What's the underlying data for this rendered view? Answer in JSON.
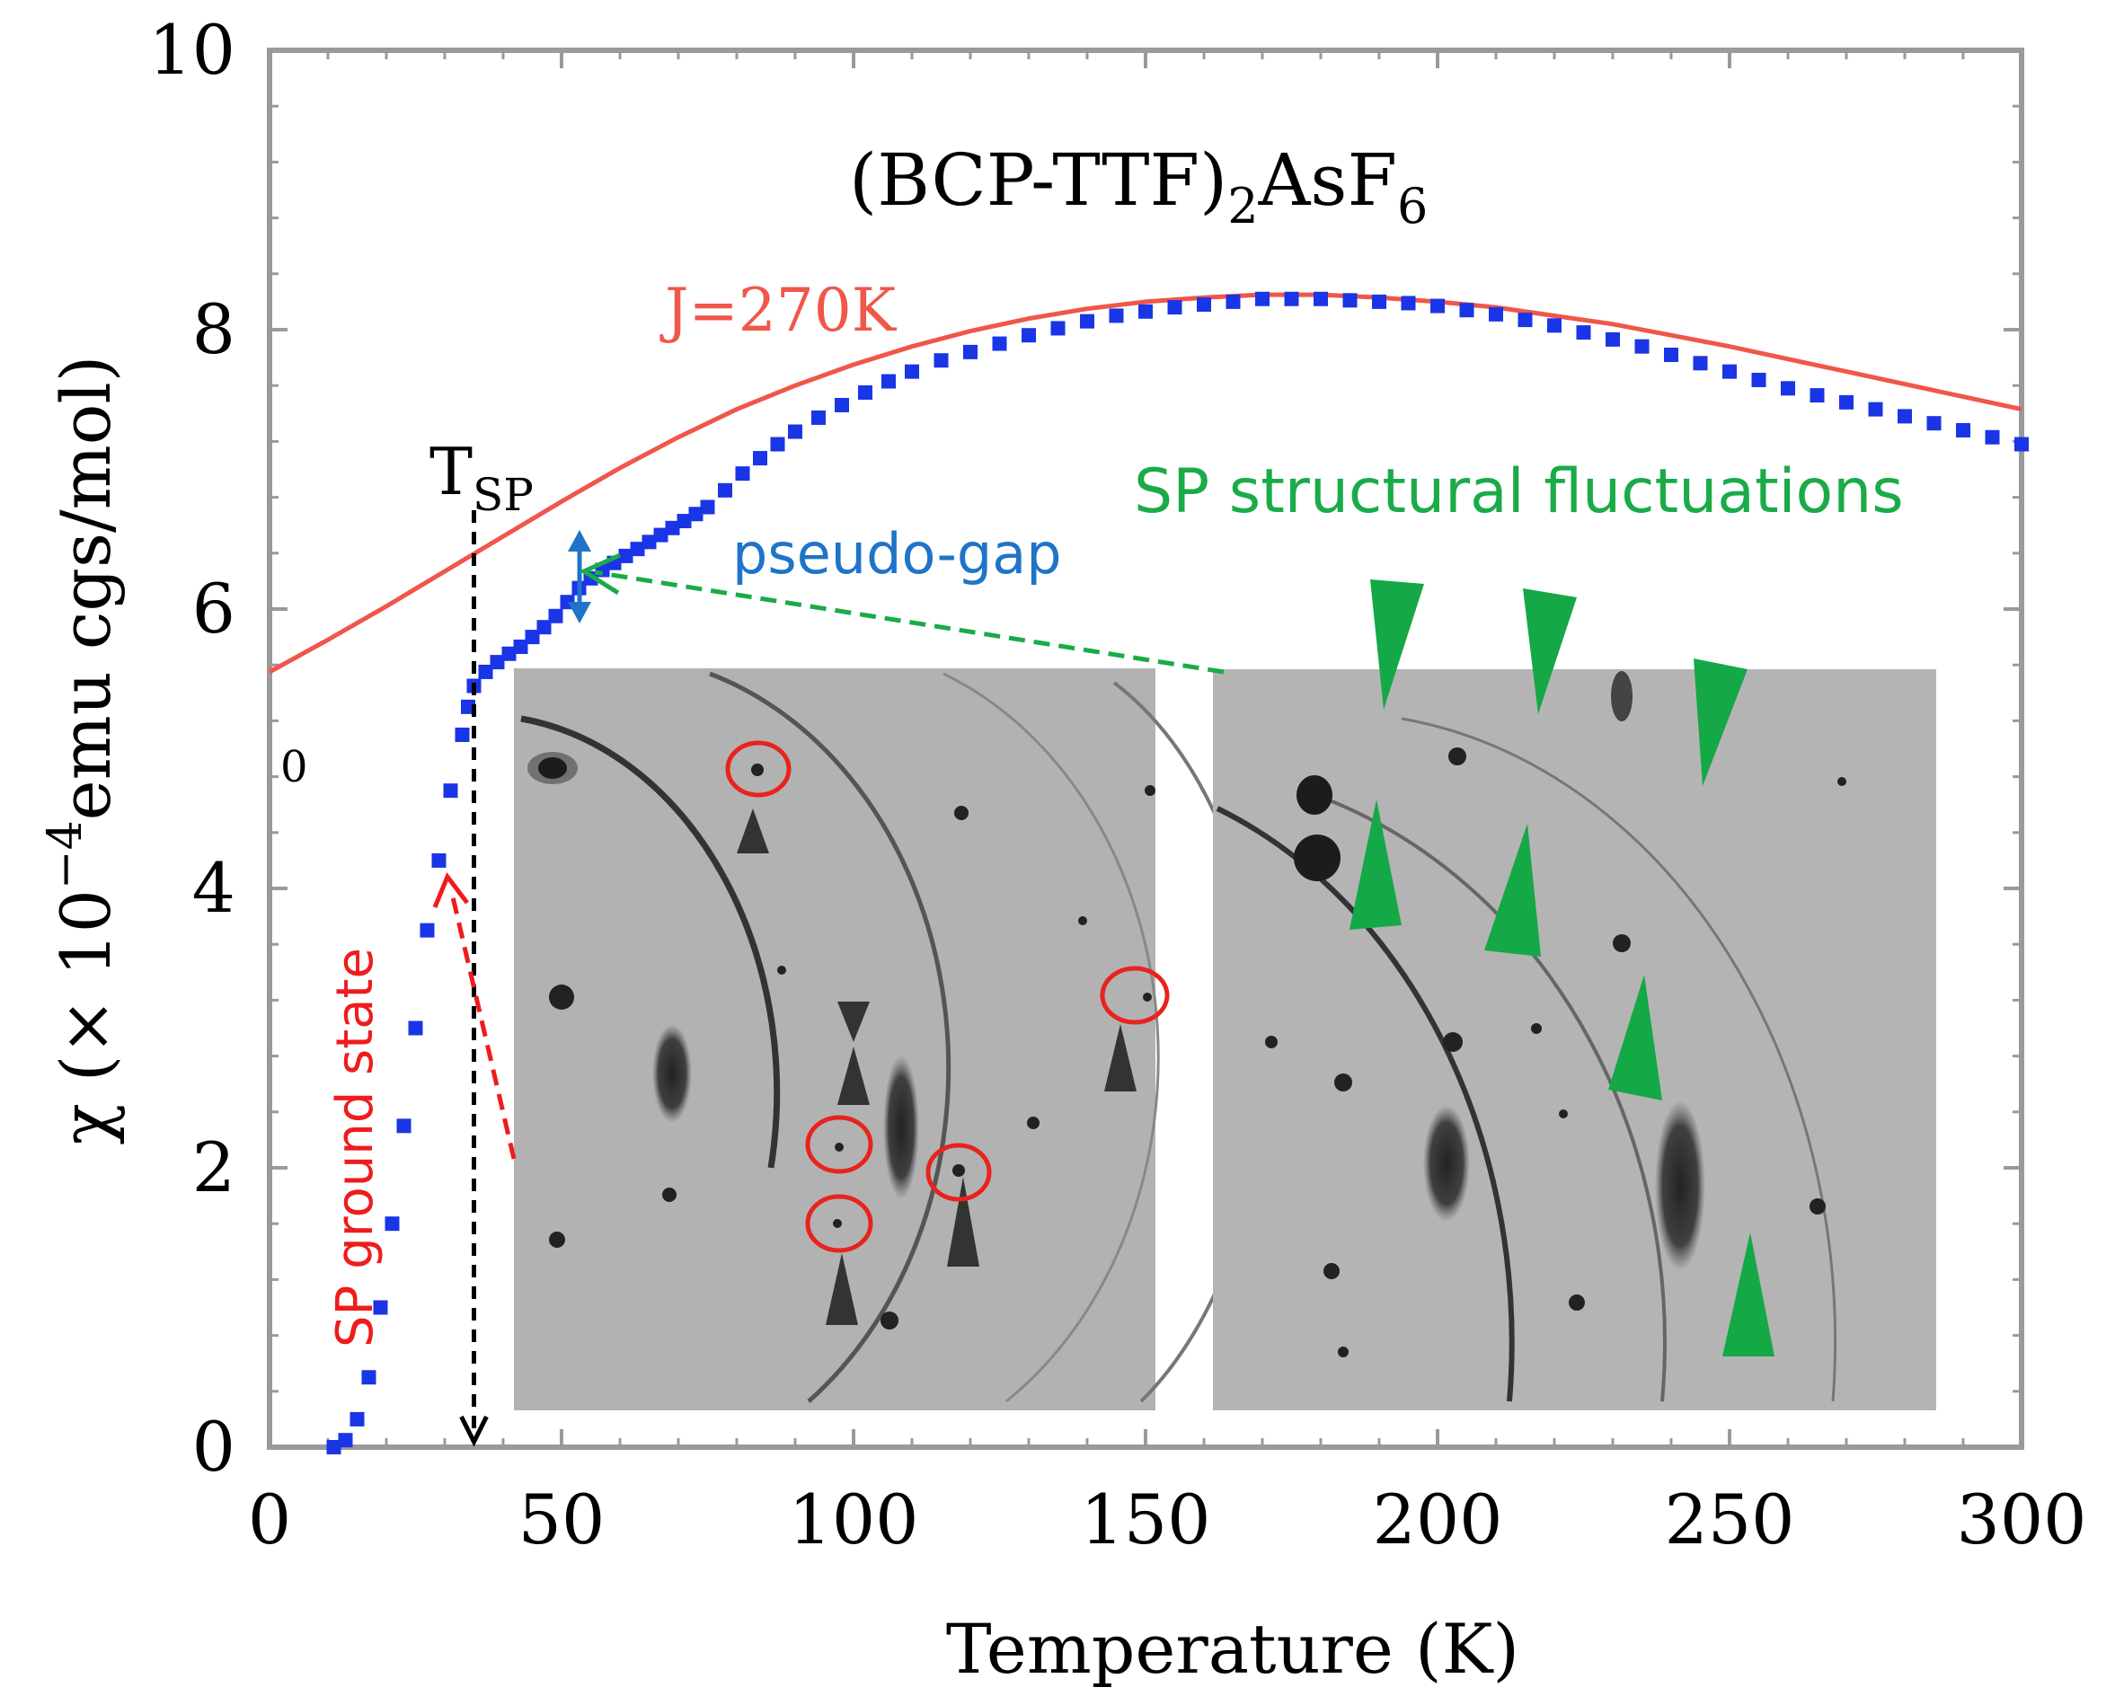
{
  "chart_data": {
    "type": "scatter",
    "title": "(BCP-TTF)",
    "title_sub": "2",
    "title_tail": "AsF",
    "title_sub2": "6",
    "xlabel": "Temperature (K)",
    "ylabel_pre": "χ (× 10",
    "ylabel_exp": "−4",
    "ylabel_post": "emu cgs/mol)",
    "xlim": [
      0,
      300
    ],
    "ylim": [
      0,
      10
    ],
    "xticks": [
      "0",
      "50",
      "100",
      "150",
      "200",
      "250",
      "300"
    ],
    "yticks": [
      "0",
      "2",
      "4",
      "6",
      "8",
      "10"
    ],
    "grid": false,
    "series": [
      {
        "role": "measured",
        "color": "#1a35e6",
        "x": [
          11,
          13,
          15,
          17,
          19,
          21,
          23,
          25,
          27,
          29,
          31,
          33,
          34,
          35,
          37,
          39,
          41,
          43,
          45,
          47,
          49,
          51,
          53,
          55,
          57,
          59,
          61,
          63,
          65,
          67,
          69,
          71,
          73,
          75,
          78,
          81,
          84,
          87,
          90,
          94,
          98,
          102,
          106,
          110,
          115,
          120,
          125,
          130,
          135,
          140,
          145,
          150,
          155,
          160,
          165,
          170,
          175,
          180,
          185,
          190,
          195,
          200,
          205,
          210,
          215,
          220,
          225,
          230,
          235,
          240,
          245,
          250,
          255,
          260,
          265,
          270,
          275,
          280,
          285,
          290,
          295,
          300
        ],
        "y": [
          0.0,
          0.05,
          0.2,
          0.5,
          1.0,
          1.6,
          2.3,
          3.0,
          3.7,
          4.2,
          4.7,
          5.1,
          5.3,
          5.45,
          5.55,
          5.62,
          5.68,
          5.73,
          5.8,
          5.87,
          5.95,
          6.05,
          6.15,
          6.22,
          6.28,
          6.33,
          6.38,
          6.43,
          6.48,
          6.53,
          6.58,
          6.63,
          6.68,
          6.73,
          6.85,
          6.97,
          7.08,
          7.18,
          7.27,
          7.37,
          7.46,
          7.55,
          7.63,
          7.7,
          7.78,
          7.84,
          7.9,
          7.96,
          8.01,
          8.06,
          8.1,
          8.13,
          8.16,
          8.18,
          8.2,
          8.22,
          8.22,
          8.22,
          8.21,
          8.2,
          8.19,
          8.17,
          8.14,
          8.11,
          8.07,
          8.03,
          7.98,
          7.93,
          7.88,
          7.82,
          7.76,
          7.7,
          7.64,
          7.58,
          7.53,
          7.48,
          7.43,
          7.38,
          7.33,
          7.28,
          7.23,
          7.18
        ]
      },
      {
        "role": "model",
        "name": "J=270K",
        "color": "#f0564a",
        "x": [
          0,
          10,
          20,
          30,
          40,
          50,
          60,
          70,
          80,
          90,
          100,
          110,
          120,
          130,
          140,
          150,
          160,
          170,
          180,
          190,
          200,
          210,
          220,
          230,
          240,
          250,
          260,
          270,
          280,
          290,
          300
        ],
        "y": [
          5.55,
          5.78,
          6.02,
          6.27,
          6.52,
          6.77,
          7.01,
          7.23,
          7.43,
          7.6,
          7.75,
          7.88,
          7.99,
          8.08,
          8.15,
          8.2,
          8.23,
          8.25,
          8.25,
          8.23,
          8.2,
          8.16,
          8.1,
          8.04,
          7.96,
          7.88,
          7.79,
          7.7,
          7.61,
          7.52,
          7.43
        ]
      }
    ],
    "annotations": {
      "j_label": "J=270K",
      "tsp_main": "T",
      "tsp_sub": "SP",
      "tsp_x": 35,
      "pseudo_gap": "pseudo-gap",
      "fluctuations": "SP structural fluctuations",
      "ground_state": "SP ground state",
      "stray_zero": "0"
    }
  },
  "colors": {
    "series": "#1a35e6",
    "model": "#f0564a",
    "tsp_line": "#000000",
    "pseudo_gap": "#1f74c8",
    "fluctuations": "#1aab48",
    "ground_state": "#ee1c1c",
    "circles": "#e8231e"
  }
}
